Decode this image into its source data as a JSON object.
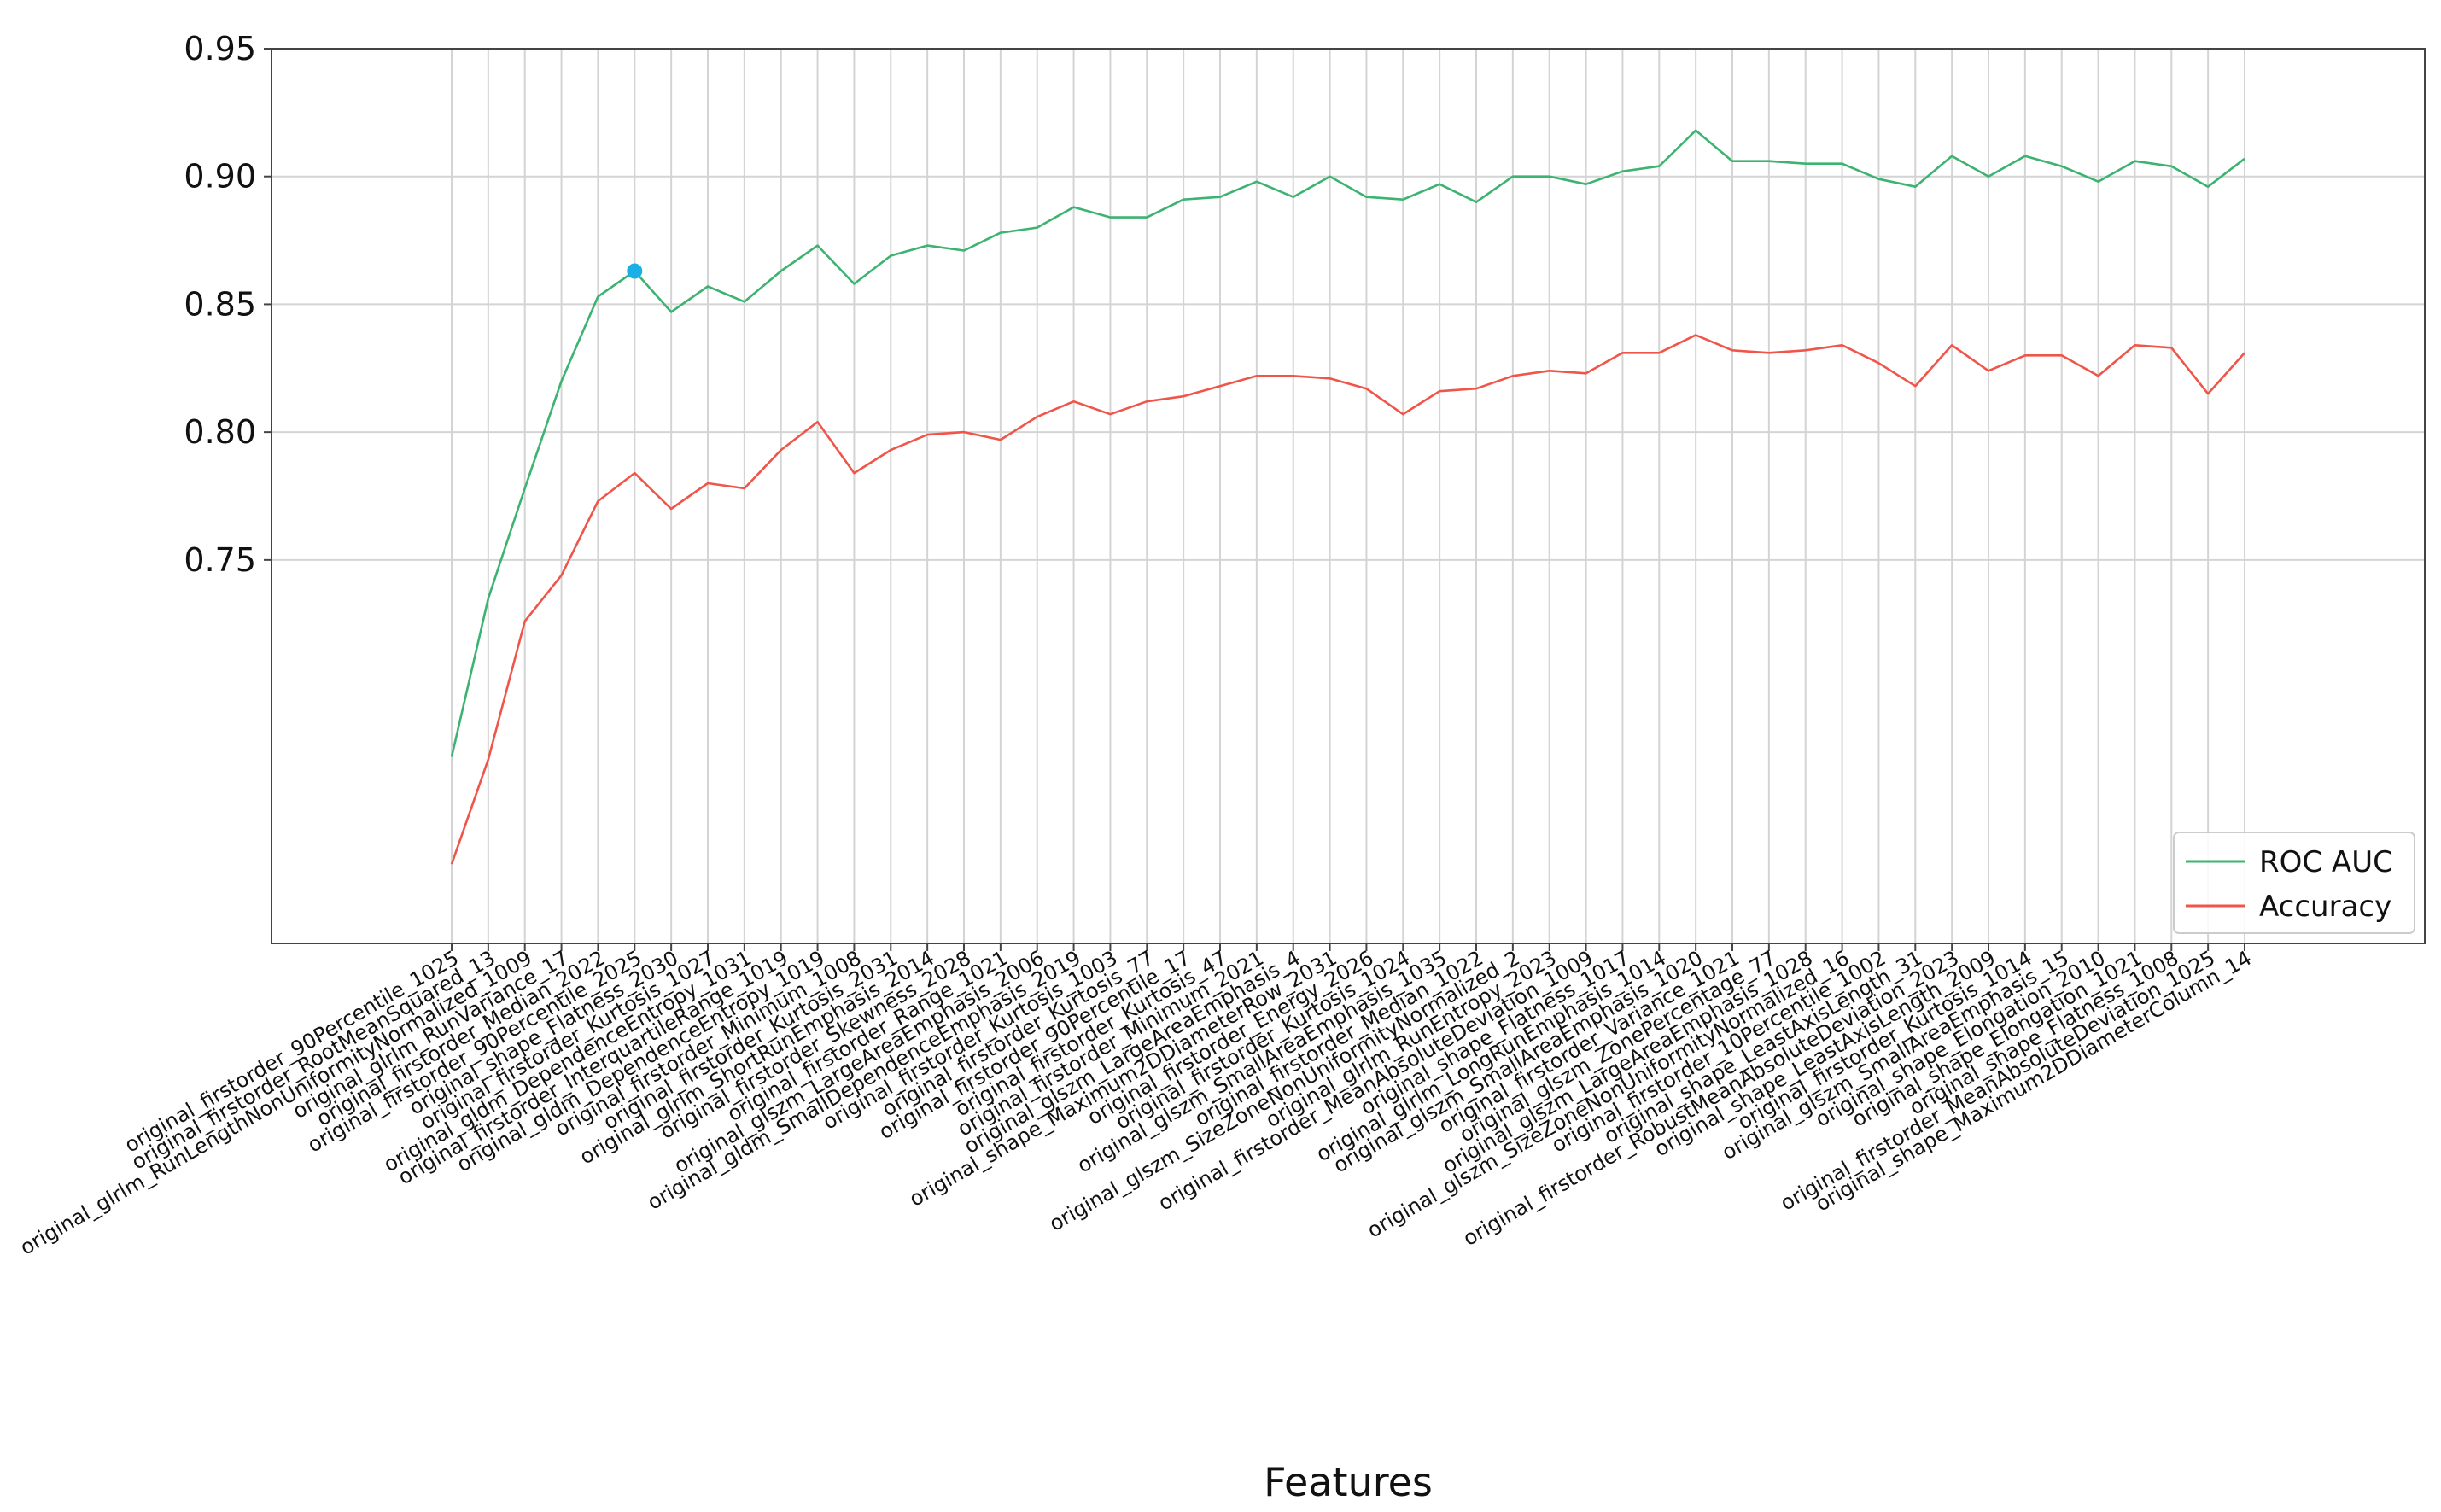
{
  "chart_data": {
    "type": "line",
    "title": "",
    "xlabel": "Features",
    "ylabel": "",
    "y_ticks": [
      "0.75",
      "0.80",
      "0.85",
      "0.90",
      "0.95"
    ],
    "ylim": [
      0.6,
      0.95
    ],
    "grid": true,
    "legend_position": "bottom-right",
    "categories": [
      "original_firstorder_90Percentile_1025",
      "original_firstorder_RootMeanSquared_13",
      "original_glrlm_RunLengthNonUniformityNormalized_1009",
      "original_glrlm_RunVariance_17",
      "original_firstorder_Median_2022",
      "original_firstorder_90Percentile_2025",
      "original_shape_Flatness_2030",
      "original_firstorder_Kurtosis_1027",
      "original_gldm_DependenceEntropy_1031",
      "original_firstorder_InterquartileRange_1019",
      "original_gldm_DependenceEntropy_1019",
      "original_firstorder_Minimum_1008",
      "original_firstorder_Kurtosis_2031",
      "original_glrlm_ShortRunEmphasis_2014",
      "original_firstorder_Skewness_2028",
      "original_firstorder_Range_1021",
      "original_glszm_LargeAreaEmphasis_2006",
      "original_gldm_SmallDependenceEmphasis_2019",
      "original_firstorder_Kurtosis_1003",
      "original_firstorder_Kurtosis_77",
      "original_firstorder_90Percentile_17",
      "original_firstorder_Kurtosis_47",
      "original_firstorder_Minimum_2021",
      "original_glszm_LargeAreaEmphasis_4",
      "original_shape_Maximum2DDiameterRow_2031",
      "original_firstorder_Energy_2026",
      "original_firstorder_Kurtosis_1024",
      "original_glszm_SmallAreaEmphasis_1035",
      "original_firstorder_Median_1022",
      "original_glszm_SizeZoneNonUniformityNormalized_2",
      "original_glrlm_RunEntropy_2023",
      "original_firstorder_MeanAbsoluteDeviation_1009",
      "original_shape_Flatness_1017",
      "original_glrlm_LongRunEmphasis_1014",
      "original_glszm_SmallAreaEmphasis_1020",
      "original_firstorder_Variance_1021",
      "original_glszm_ZonePercentage_77",
      "original_glszm_LargeAreaEmphasis_1028",
      "original_glszm_SizeZoneNonUniformityNormalized_16",
      "original_firstorder_10Percentile_1002",
      "original_shape_LeastAxisLength_31",
      "original_firstorder_RobustMeanAbsoluteDeviation_2023",
      "original_shape_LeastAxisLength_2009",
      "original_firstorder_Kurtosis_1014",
      "original_glszm_SmallAreaEmphasis_15",
      "original_shape_Elongation_2010",
      "original_shape_Elongation_1021",
      "original_shape_Flatness_1008",
      "original_firstorder_MeanAbsoluteDeviation_1025",
      "original_shape_Maximum2DDiameterColumn_14"
    ],
    "series": [
      {
        "name": "ROC AUC",
        "color": "#3cb371",
        "values": [
          0.673,
          0.735,
          0.778,
          0.82,
          0.853,
          0.863,
          0.847,
          0.857,
          0.851,
          0.863,
          0.873,
          0.858,
          0.869,
          0.873,
          0.871,
          0.878,
          0.88,
          0.888,
          0.884,
          0.884,
          0.891,
          0.892,
          0.898,
          0.892,
          0.9,
          0.892,
          0.891,
          0.897,
          0.89,
          0.9,
          0.9,
          0.897,
          0.902,
          0.904,
          0.918,
          0.906,
          0.906,
          0.905,
          0.905,
          0.899,
          0.896,
          0.908,
          0.9,
          0.908,
          0.904,
          0.898,
          0.906,
          0.904,
          0.896,
          0.907
        ]
      },
      {
        "name": "Accuracy",
        "color": "#f0554a",
        "values": [
          0.631,
          0.672,
          0.726,
          0.744,
          0.773,
          0.784,
          0.77,
          0.78,
          0.778,
          0.793,
          0.804,
          0.784,
          0.793,
          0.799,
          0.8,
          0.797,
          0.806,
          0.812,
          0.807,
          0.812,
          0.814,
          0.818,
          0.822,
          0.822,
          0.821,
          0.817,
          0.807,
          0.816,
          0.817,
          0.822,
          0.824,
          0.823,
          0.831,
          0.831,
          0.838,
          0.832,
          0.831,
          0.832,
          0.834,
          0.827,
          0.818,
          0.834,
          0.824,
          0.83,
          0.83,
          0.822,
          0.834,
          0.833,
          0.815,
          0.831
        ]
      }
    ],
    "highlight_point": {
      "series": "ROC AUC",
      "category_index": 5,
      "value": 0.863,
      "color": "#1ab0e6"
    }
  }
}
